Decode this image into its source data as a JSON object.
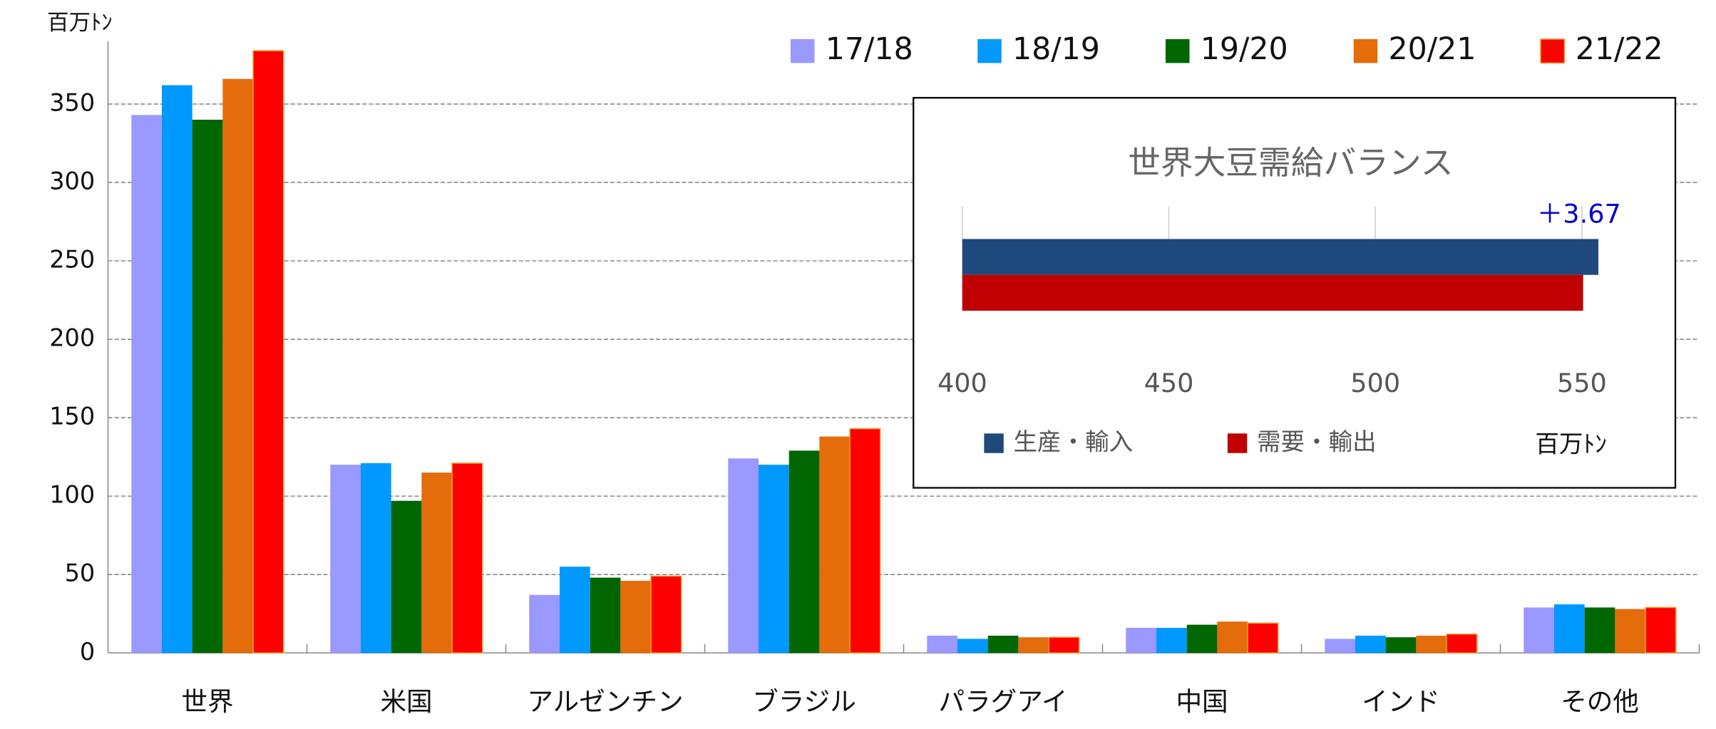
{
  "chart_data": [
    {
      "type": "bar",
      "y_label": "百万ﾄﾝ",
      "categories": [
        "世界",
        "米国",
        "アルゼンチン",
        "ブラジル",
        "パラグアイ",
        "中国",
        "インド",
        "その他"
      ],
      "series": [
        {
          "name": "17/18",
          "color": "#9999ff",
          "values": [
            343,
            120,
            37,
            124,
            11,
            16,
            9,
            29
          ]
        },
        {
          "name": "18/19",
          "color": "#0099ff",
          "values": [
            362,
            121,
            55,
            120,
            9,
            16,
            11,
            31
          ]
        },
        {
          "name": "19/20",
          "color": "#006600",
          "values": [
            340,
            97,
            48,
            129,
            11,
            18,
            10,
            29
          ]
        },
        {
          "name": "20/21",
          "color": "#e46c0a",
          "values": [
            366,
            115,
            46,
            138,
            10,
            20,
            11,
            28
          ]
        },
        {
          "name": "21/22",
          "color": "#ff0000",
          "values": [
            384,
            121,
            49,
            143,
            10,
            19,
            12,
            29
          ]
        }
      ],
      "ylim": [
        0,
        390
      ],
      "yticks": [
        0,
        50,
        100,
        150,
        200,
        250,
        300,
        350
      ],
      "grid": true,
      "legend": "top"
    },
    {
      "type": "hbar",
      "title": "世界大豆需給バランス",
      "x_label": "百万ﾄﾝ",
      "annotation": "＋3.67",
      "series": [
        {
          "name": "生産・輸入",
          "color": "#1f497d",
          "value": 554.0
        },
        {
          "name": "需要・輸出",
          "color": "#c00000",
          "value": 550.3
        }
      ],
      "xlim": [
        400,
        565
      ],
      "xticks": [
        400,
        450,
        500,
        550
      ],
      "grid": true,
      "legend": "bottom"
    }
  ]
}
